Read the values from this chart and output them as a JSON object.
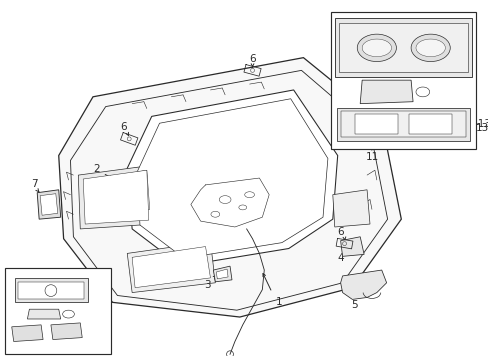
{
  "bg_color": "#ffffff",
  "line_color": "#2a2a2a",
  "fig_width": 4.89,
  "fig_height": 3.6,
  "dpi": 100,
  "lw": 0.7
}
